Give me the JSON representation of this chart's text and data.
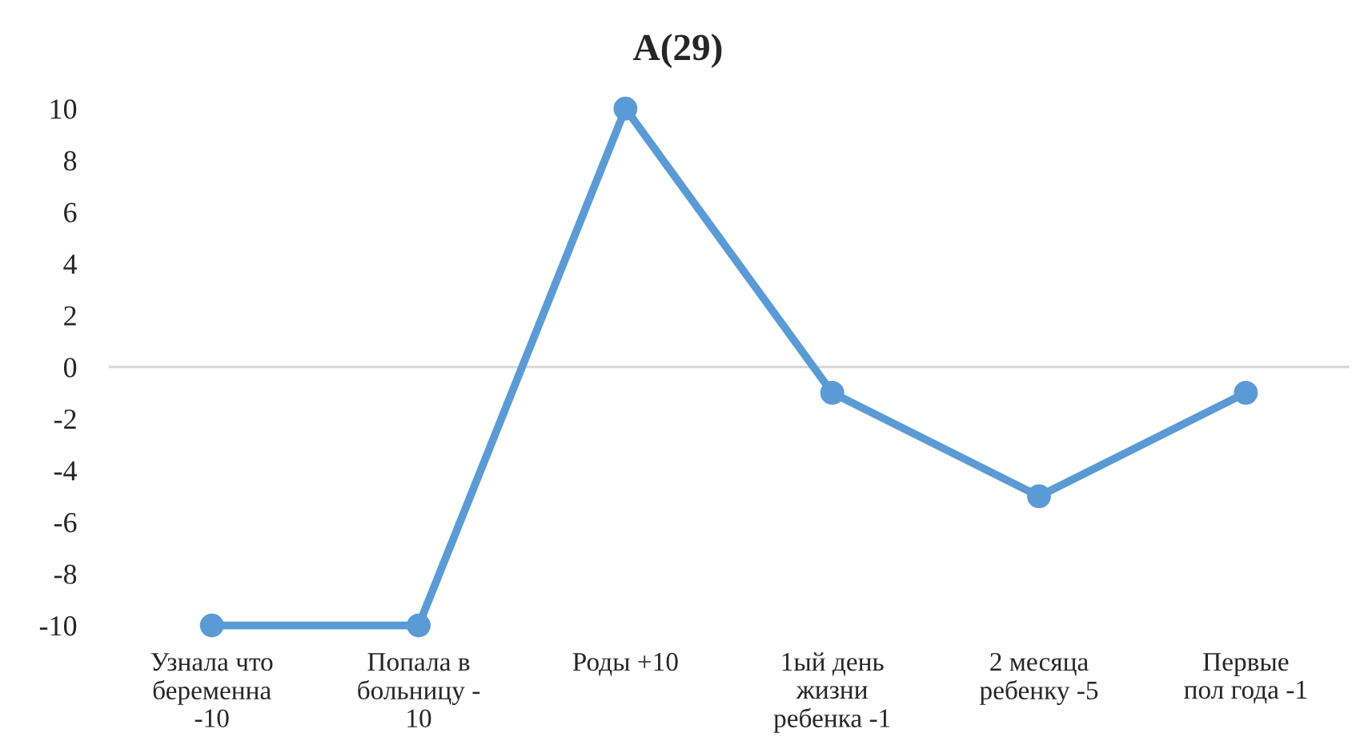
{
  "chart_data": {
    "type": "line",
    "title": "A(29)",
    "categories": [
      "Узнала что\nбеременна\n-10",
      "Попала в\nбольницу -\n10",
      "Роды +10",
      "1ый день\nжизни\nребенка -1",
      "2 месяца\nребенку -5",
      "Первые\nпол года -1"
    ],
    "series": [
      {
        "color": "#5b9bd5",
        "values": [
          -10,
          -10,
          10,
          -1,
          -5,
          -1
        ]
      }
    ],
    "ylim": [
      -10,
      10
    ],
    "yticks": [
      -10,
      -8,
      -6,
      -4,
      -2,
      0,
      2,
      4,
      6,
      8,
      10
    ],
    "ref_lines": [
      {
        "axis": "y",
        "value": 0,
        "color": "#d9d9d9"
      }
    ],
    "marker": "circle",
    "line_style": "solid",
    "grid": false,
    "legend": false
  }
}
